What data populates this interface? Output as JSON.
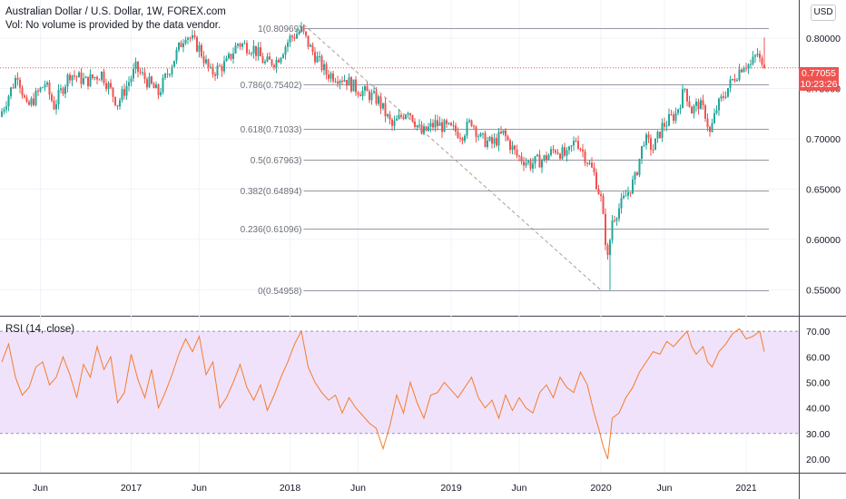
{
  "header": {
    "title": "Australian Dollar / U.S. Dollar, 1W, FOREX.com",
    "volume_note": "Vol: No volume is provided by the data vendor.",
    "currency_button": "USD"
  },
  "price_tag": {
    "price": "0.77055",
    "countdown": "10:23:26"
  },
  "rsi_label": "RSI (14, close)",
  "colors": {
    "up": "#26a69a",
    "down": "#ef5350",
    "rsi_line": "#f57c2a",
    "rsi_band": "#f0e2fb",
    "fib_line": "#9598a1",
    "trend": "#b39a9a"
  },
  "chart_data": [
    {
      "type": "candlestick",
      "title": "Australian Dollar / U.S. Dollar, 1W, FOREX.com",
      "x_ticks": [
        "Jun",
        "2017",
        "Jun",
        "2018",
        "Jun",
        "2019",
        "Jun",
        "2020",
        "Jun",
        "2021"
      ],
      "y_ticks": [
        "0.80000",
        "0.75000",
        "0.70000",
        "0.65000",
        "0.60000",
        "0.55000"
      ],
      "ylim": [
        0.525,
        0.838
      ],
      "last_price": 0.77055,
      "fib_levels": [
        {
          "label": "1(0.80969)",
          "value": 0.80969
        },
        {
          "label": "0.786(0.75402)",
          "value": 0.75402
        },
        {
          "label": "0.618(0.71033)",
          "value": 0.71033
        },
        {
          "label": "0.5(0.67963)",
          "value": 0.67963
        },
        {
          "label": "0.382(0.64894)",
          "value": 0.64894
        },
        {
          "label": "0.236(0.61096)",
          "value": 0.61096
        },
        {
          "label": "0(0.54958)",
          "value": 0.54958
        }
      ],
      "trend_line": {
        "from": {
          "week": 133,
          "price": 0.8136
        },
        "to": {
          "week": 264,
          "price": 0.5496
        }
      },
      "anchors": [
        [
          0,
          0.722
        ],
        [
          8,
          0.765
        ],
        [
          12,
          0.73
        ],
        [
          20,
          0.755
        ],
        [
          24,
          0.733
        ],
        [
          31,
          0.765
        ],
        [
          38,
          0.757
        ],
        [
          45,
          0.765
        ],
        [
          52,
          0.735
        ],
        [
          60,
          0.77
        ],
        [
          70,
          0.745
        ],
        [
          82,
          0.805
        ],
        [
          88,
          0.79
        ],
        [
          93,
          0.765
        ],
        [
          100,
          0.775
        ],
        [
          105,
          0.795
        ],
        [
          112,
          0.79
        ],
        [
          117,
          0.775
        ],
        [
          122,
          0.778
        ],
        [
          128,
          0.8
        ],
        [
          133,
          0.808
        ],
        [
          137,
          0.79
        ],
        [
          144,
          0.765
        ],
        [
          152,
          0.76
        ],
        [
          157,
          0.75
        ],
        [
          162,
          0.745
        ],
        [
          167,
          0.738
        ],
        [
          173,
          0.712
        ],
        [
          180,
          0.73
        ],
        [
          186,
          0.705
        ],
        [
          192,
          0.715
        ],
        [
          198,
          0.71
        ],
        [
          204,
          0.705
        ],
        [
          208,
          0.718
        ],
        [
          212,
          0.7
        ],
        [
          217,
          0.695
        ],
        [
          222,
          0.705
        ],
        [
          228,
          0.683
        ],
        [
          234,
          0.675
        ],
        [
          240,
          0.68
        ],
        [
          245,
          0.69
        ],
        [
          250,
          0.682
        ],
        [
          254,
          0.7
        ],
        [
          258,
          0.683
        ],
        [
          262,
          0.665
        ],
        [
          265,
          0.64
        ],
        [
          268,
          0.58
        ],
        [
          270,
          0.62
        ],
        [
          274,
          0.635
        ],
        [
          280,
          0.66
        ],
        [
          284,
          0.7
        ],
        [
          288,
          0.69
        ],
        [
          292,
          0.712
        ],
        [
          298,
          0.725
        ],
        [
          302,
          0.75
        ],
        [
          305,
          0.728
        ],
        [
          308,
          0.735
        ],
        [
          311,
          0.725
        ],
        [
          313,
          0.705
        ],
        [
          316,
          0.73
        ],
        [
          320,
          0.747
        ],
        [
          324,
          0.762
        ],
        [
          328,
          0.775
        ],
        [
          331,
          0.773
        ],
        [
          334,
          0.785
        ],
        [
          336,
          0.77
        ]
      ]
    },
    {
      "type": "line",
      "title": "RSI (14, close)",
      "y_ticks": [
        "70.00",
        "60.00",
        "50.00",
        "40.00",
        "30.00",
        "20.00"
      ],
      "ylim": [
        15,
        75
      ],
      "band": [
        30,
        70
      ],
      "points": [
        [
          0,
          58
        ],
        [
          3,
          65
        ],
        [
          6,
          52
        ],
        [
          9,
          45
        ],
        [
          12,
          48
        ],
        [
          15,
          56
        ],
        [
          18,
          58
        ],
        [
          21,
          49
        ],
        [
          24,
          52
        ],
        [
          27,
          60
        ],
        [
          30,
          53
        ],
        [
          33,
          44
        ],
        [
          36,
          57
        ],
        [
          39,
          52
        ],
        [
          42,
          64
        ],
        [
          45,
          55
        ],
        [
          48,
          60
        ],
        [
          51,
          42
        ],
        [
          54,
          46
        ],
        [
          57,
          61
        ],
        [
          60,
          51
        ],
        [
          63,
          44
        ],
        [
          66,
          55
        ],
        [
          69,
          40
        ],
        [
          72,
          46
        ],
        [
          75,
          53
        ],
        [
          78,
          61
        ],
        [
          81,
          67
        ],
        [
          84,
          62
        ],
        [
          87,
          68
        ],
        [
          90,
          53
        ],
        [
          93,
          58
        ],
        [
          96,
          40
        ],
        [
          99,
          44
        ],
        [
          102,
          50
        ],
        [
          105,
          57
        ],
        [
          108,
          48
        ],
        [
          111,
          43
        ],
        [
          114,
          49
        ],
        [
          117,
          39
        ],
        [
          120,
          45
        ],
        [
          123,
          52
        ],
        [
          126,
          58
        ],
        [
          129,
          65
        ],
        [
          132,
          70
        ],
        [
          135,
          56
        ],
        [
          138,
          50
        ],
        [
          141,
          46
        ],
        [
          144,
          43
        ],
        [
          147,
          45
        ],
        [
          150,
          38
        ],
        [
          153,
          44
        ],
        [
          156,
          40
        ],
        [
          159,
          37
        ],
        [
          162,
          34
        ],
        [
          165,
          32
        ],
        [
          168,
          24
        ],
        [
          171,
          33
        ],
        [
          174,
          45
        ],
        [
          177,
          38
        ],
        [
          180,
          50
        ],
        [
          183,
          42
        ],
        [
          186,
          36
        ],
        [
          189,
          45
        ],
        [
          192,
          46
        ],
        [
          195,
          50
        ],
        [
          198,
          47
        ],
        [
          201,
          44
        ],
        [
          204,
          48
        ],
        [
          207,
          52
        ],
        [
          210,
          44
        ],
        [
          213,
          40
        ],
        [
          216,
          43
        ],
        [
          219,
          36
        ],
        [
          222,
          45
        ],
        [
          225,
          39
        ],
        [
          228,
          44
        ],
        [
          231,
          40
        ],
        [
          234,
          38
        ],
        [
          237,
          46
        ],
        [
          240,
          49
        ],
        [
          243,
          44
        ],
        [
          246,
          52
        ],
        [
          249,
          48
        ],
        [
          252,
          46
        ],
        [
          255,
          54
        ],
        [
          258,
          49
        ],
        [
          261,
          38
        ],
        [
          263,
          32
        ],
        [
          265,
          25
        ],
        [
          267,
          20
        ],
        [
          269,
          36
        ],
        [
          272,
          38
        ],
        [
          275,
          44
        ],
        [
          278,
          48
        ],
        [
          281,
          54
        ],
        [
          284,
          58
        ],
        [
          287,
          62
        ],
        [
          290,
          61
        ],
        [
          293,
          66
        ],
        [
          296,
          64
        ],
        [
          299,
          67
        ],
        [
          302,
          70
        ],
        [
          304,
          64
        ],
        [
          306,
          61
        ],
        [
          309,
          64
        ],
        [
          311,
          58
        ],
        [
          313,
          56
        ],
        [
          316,
          62
        ],
        [
          319,
          65
        ],
        [
          322,
          69
        ],
        [
          325,
          71
        ],
        [
          328,
          67
        ],
        [
          331,
          68
        ],
        [
          334,
          70
        ],
        [
          336,
          62
        ]
      ]
    }
  ]
}
